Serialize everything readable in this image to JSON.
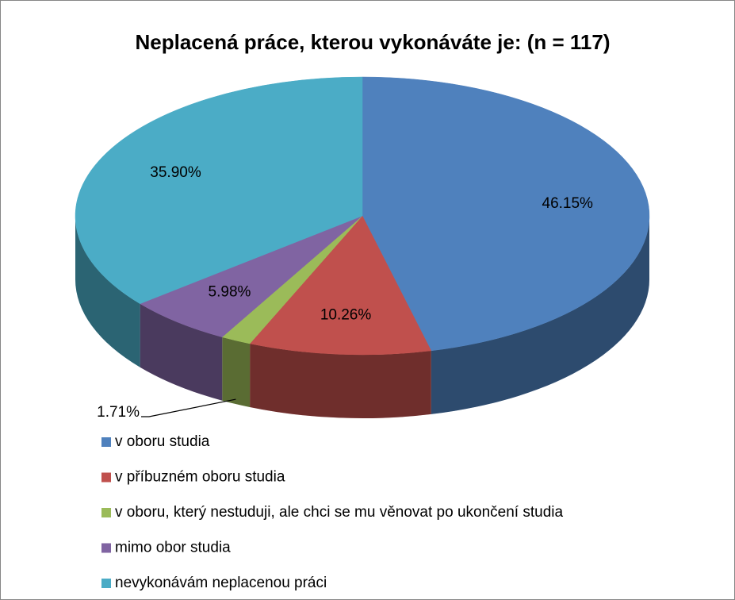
{
  "chart_data": {
    "type": "pie",
    "title": "Neplacená práce, kterou vykonáváte je: (n = 117)",
    "categories": [
      "v oboru studia",
      "v příbuzném oboru studia",
      "v oboru, který nestuduji, ale chci se mu věnovat po ukončení studia",
      "mimo obor studia",
      "nevykonávám neplacenou práci"
    ],
    "values": [
      46.15,
      10.26,
      1.71,
      5.98,
      35.9
    ],
    "value_labels": [
      "46.15%",
      "10.26%",
      "1.71%",
      "5.98%",
      "35.90%"
    ],
    "colors": [
      "#4f81bd",
      "#c0504d",
      "#9bbb59",
      "#8064a2",
      "#4bacc6"
    ],
    "legend": "bottom"
  }
}
